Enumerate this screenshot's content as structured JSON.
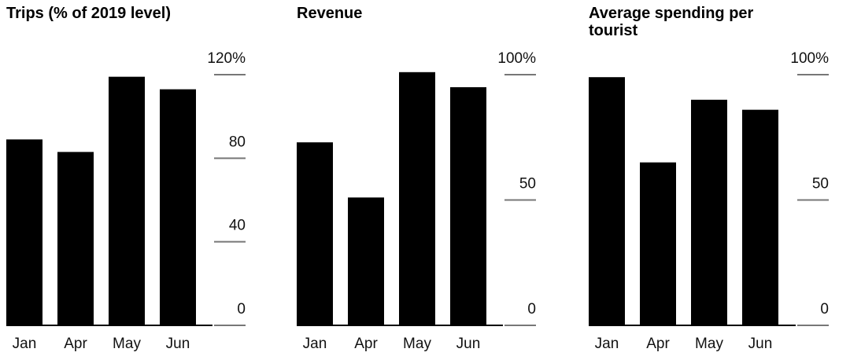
{
  "chart_data": [
    {
      "type": "bar",
      "title": "Trips (% of 2019 level)",
      "categories": [
        "Jan",
        "Apr",
        "May",
        "Jun"
      ],
      "values": [
        89,
        83,
        119,
        113
      ],
      "color": "#000000",
      "ylim": [
        0,
        120
      ],
      "yticks": [
        0,
        40,
        80,
        {
          "value": 120,
          "label": "120%"
        }
      ]
    },
    {
      "type": "bar",
      "title": "Revenue",
      "categories": [
        "Jan",
        "Apr",
        "May",
        "Jun"
      ],
      "values": [
        73,
        51,
        101,
        95
      ],
      "color": "#000000",
      "ylim": [
        0,
        100
      ],
      "yticks": [
        0,
        50,
        {
          "value": 100,
          "label": "100%"
        }
      ]
    },
    {
      "type": "bar",
      "title": "Average spending per tourist",
      "categories": [
        "Jan",
        "Apr",
        "May",
        "Jun"
      ],
      "values": [
        99,
        65,
        90,
        86
      ],
      "color": "#000000",
      "ylim": [
        0,
        100
      ],
      "yticks": [
        0,
        50,
        {
          "value": 100,
          "label": "100%"
        }
      ]
    }
  ]
}
